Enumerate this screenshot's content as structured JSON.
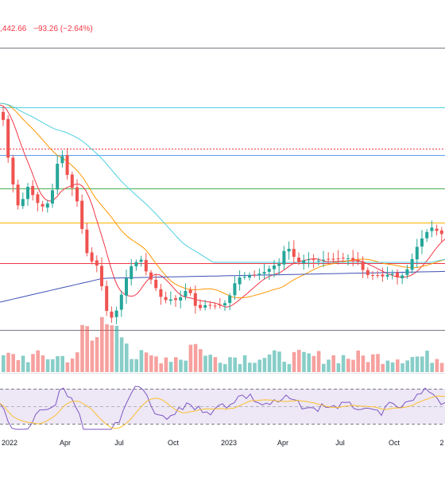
{
  "header": {
    "price": ",442.66",
    "change": "−93.26 (−2.64%)"
  },
  "colors": {
    "up": "#26a69a",
    "down": "#ef5350",
    "sma_fast": "#f23645",
    "sma_mid": "#ff9800",
    "sma_slow": "#4dd0e1",
    "sma_long": "#3f51b5",
    "rsi": "#7e57c2",
    "rsi_ma": "#fbc02d",
    "rsi_band": "#ede7f6"
  },
  "chart_data": {
    "type": "candlestick",
    "x_ticks": [
      "2022",
      "Apr",
      "Jul",
      "Oct",
      "2023",
      "Apr",
      "Jul",
      "Oct",
      "2"
    ],
    "horizontal_levels": [
      {
        "color": "#787b86"
      },
      {
        "color": "#4dd0e1"
      },
      {
        "color": "#f23645",
        "style": "dotted"
      },
      {
        "color": "#5b9cf6"
      },
      {
        "color": "#4caf50"
      },
      {
        "color": "#ffb300"
      },
      {
        "color": "#f23645"
      },
      {
        "color": "#787b86"
      }
    ],
    "grid": false,
    "panes": [
      "price",
      "volume",
      "rsi"
    ]
  }
}
